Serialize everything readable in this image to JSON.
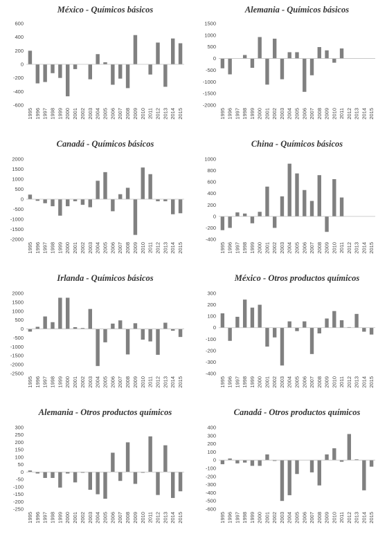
{
  "years": [
    "1995",
    "1996",
    "1997",
    "1998",
    "1999",
    "2000",
    "2001",
    "2002",
    "2003",
    "2004",
    "2005",
    "2006",
    "2007",
    "2008",
    "2009",
    "2010",
    "2011",
    "2012",
    "2013",
    "2014",
    "2015"
  ],
  "bar_color": "#808080",
  "chart_data": [
    {
      "type": "bar",
      "title": "México - Químicos básicos",
      "categories": [
        "1995",
        "1996",
        "1997",
        "1998",
        "1999",
        "2000",
        "2001",
        "2002",
        "2003",
        "2004",
        "2005",
        "2006",
        "2007",
        "2008",
        "2009",
        "2010",
        "2011",
        "2012",
        "2013",
        "2014",
        "2015"
      ],
      "values": [
        200,
        -280,
        -260,
        -130,
        -200,
        -470,
        -70,
        0,
        -220,
        150,
        30,
        -300,
        -210,
        -350,
        430,
        0,
        -150,
        320,
        -330,
        380,
        310
      ],
      "ylim": [
        -600,
        600
      ],
      "yticks": [
        600,
        400,
        200,
        0,
        -200,
        -400,
        -600
      ]
    },
    {
      "type": "bar",
      "title": "Alemania - Químicos básicos",
      "categories": [
        "1995",
        "1996",
        "1997",
        "1998",
        "1999",
        "2000",
        "2001",
        "2002",
        "2003",
        "2004",
        "2005",
        "2006",
        "2007",
        "2008",
        "2009",
        "2010",
        "2011",
        "2012",
        "2013",
        "2014",
        "2015"
      ],
      "values": [
        -420,
        -680,
        0,
        150,
        -400,
        920,
        -1120,
        850,
        -890,
        270,
        270,
        -1430,
        -720,
        490,
        350,
        -180,
        430,
        0,
        0,
        0,
        0
      ],
      "ylim": [
        -2000,
        1500
      ],
      "yticks": [
        1500,
        1000,
        500,
        0,
        -500,
        -1000,
        -1500,
        -2000
      ]
    },
    {
      "type": "bar",
      "title": "Canadá - Químicos básicos",
      "categories": [
        "1995",
        "1996",
        "1997",
        "1998",
        "1999",
        "2000",
        "2001",
        "2002",
        "2003",
        "2004",
        "2005",
        "2006",
        "2007",
        "2008",
        "2009",
        "2010",
        "2011",
        "2012",
        "2013",
        "2014",
        "2015"
      ],
      "values": [
        230,
        -80,
        -200,
        -350,
        -820,
        -350,
        -100,
        -280,
        -400,
        920,
        1350,
        -600,
        250,
        570,
        -1780,
        1580,
        1250,
        -100,
        -100,
        -750,
        -700
      ],
      "ylim": [
        -2000,
        2000
      ],
      "yticks": [
        2000,
        1500,
        1000,
        500,
        0,
        -500,
        -1000,
        -1500,
        -2000
      ]
    },
    {
      "type": "bar",
      "title": "China - Químicos básicos",
      "categories": [
        "1995",
        "1996",
        "1997",
        "1998",
        "1999",
        "2000",
        "2001",
        "2002",
        "2003",
        "2004",
        "2005",
        "2006",
        "2007",
        "2008",
        "2009",
        "2010",
        "2011",
        "2012",
        "2013",
        "2014",
        "2015"
      ],
      "values": [
        -240,
        -200,
        70,
        50,
        -120,
        80,
        520,
        -200,
        350,
        920,
        750,
        460,
        270,
        720,
        -270,
        650,
        330,
        0,
        0,
        0,
        0
      ],
      "ylim": [
        -400,
        1000
      ],
      "yticks": [
        1000,
        800,
        600,
        400,
        200,
        0,
        -200,
        -400
      ]
    },
    {
      "type": "bar",
      "title": "Irlanda - Químicos básicos",
      "categories": [
        "1995",
        "1996",
        "1997",
        "1998",
        "1999",
        "2000",
        "2001",
        "2002",
        "2003",
        "2004",
        "2005",
        "2006",
        "2007",
        "2008",
        "2009",
        "2010",
        "2011",
        "2012",
        "2013",
        "2014",
        "2015"
      ],
      "values": [
        -150,
        120,
        700,
        380,
        1750,
        1750,
        100,
        50,
        1120,
        -2080,
        -750,
        300,
        480,
        -1430,
        320,
        -600,
        -700,
        -1450,
        350,
        -100,
        -450
      ],
      "ylim": [
        -2500,
        2000
      ],
      "yticks": [
        2000,
        1500,
        1000,
        500,
        0,
        -500,
        -1000,
        -1500,
        -2000,
        -2500
      ]
    },
    {
      "type": "bar",
      "title": "México - Otros productos químicos",
      "categories": [
        "1995",
        "1996",
        "1997",
        "1998",
        "1999",
        "2000",
        "2001",
        "2002",
        "2003",
        "2004",
        "2005",
        "2006",
        "2007",
        "2008",
        "2009",
        "2010",
        "2011",
        "2012",
        "2013",
        "2014",
        "2015"
      ],
      "values": [
        125,
        -115,
        95,
        245,
        175,
        200,
        -165,
        -85,
        -330,
        55,
        -30,
        55,
        -230,
        -50,
        80,
        145,
        65,
        5,
        120,
        -35,
        -60
      ],
      "ylim": [
        -400,
        300
      ],
      "yticks": [
        300,
        200,
        100,
        0,
        -100,
        -200,
        -300,
        -400
      ]
    },
    {
      "type": "bar",
      "title": "Alemania - Otros productos químicos",
      "categories": [
        "1995",
        "1996",
        "1997",
        "1998",
        "1999",
        "2000",
        "2001",
        "2002",
        "2003",
        "2004",
        "2005",
        "2006",
        "2007",
        "2008",
        "2009",
        "2010",
        "2011",
        "2012",
        "2013",
        "2014",
        "2015"
      ],
      "values": [
        10,
        -10,
        -40,
        -40,
        -105,
        -10,
        -70,
        -5,
        -120,
        -150,
        -180,
        130,
        -60,
        200,
        -80,
        -5,
        240,
        -155,
        180,
        -175,
        -130
      ],
      "ylim": [
        -250,
        300
      ],
      "yticks": [
        300,
        250,
        200,
        150,
        100,
        50,
        0,
        -50,
        -100,
        -150,
        -200,
        -250
      ]
    },
    {
      "type": "bar",
      "title": "Canadá - Otros productos químicos",
      "categories": [
        "1995",
        "1996",
        "1997",
        "1998",
        "1999",
        "2000",
        "2001",
        "2002",
        "2003",
        "2004",
        "2005",
        "2006",
        "2007",
        "2008",
        "2009",
        "2010",
        "2011",
        "2012",
        "2013",
        "2014",
        "2015"
      ],
      "values": [
        -50,
        20,
        -40,
        -30,
        -70,
        -70,
        70,
        -10,
        -500,
        -430,
        -170,
        0,
        -150,
        -310,
        70,
        145,
        -20,
        320,
        10,
        -370,
        -80
      ],
      "ylim": [
        -600,
        400
      ],
      "yticks": [
        400,
        300,
        200,
        100,
        0,
        -100,
        -200,
        -300,
        -400,
        -500,
        -600
      ]
    }
  ]
}
